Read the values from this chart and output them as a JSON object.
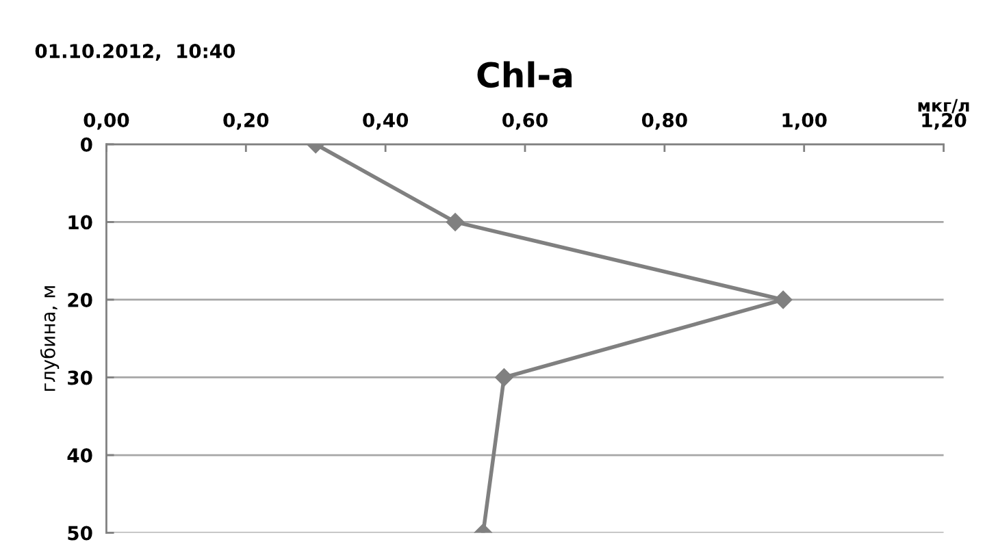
{
  "chart_data": {
    "type": "line",
    "title": "Chl-a",
    "xlabel": "мкг/л",
    "ylabel": "глубина, м",
    "annotations": [
      "01.10.2012,  10:40"
    ],
    "x": [
      0.3,
      0.5,
      0.97,
      0.57,
      0.54
    ],
    "series": [
      {
        "color": "#808080",
        "values": [
          0,
          10,
          20,
          30,
          50
        ]
      }
    ],
    "xlim": [
      0,
      1.2
    ],
    "xticks": [
      {
        "value": 0,
        "label": "0,00"
      },
      {
        "value": 0.2,
        "label": "0,20"
      },
      {
        "value": 0.4,
        "label": "0,40"
      },
      {
        "value": 0.6,
        "label": "0,60"
      },
      {
        "value": 0.8,
        "label": "0,80"
      },
      {
        "value": 1.0,
        "label": "1,00"
      },
      {
        "value": 1.2,
        "label": "1,20"
      }
    ],
    "ylim": [
      50,
      0
    ],
    "yticks": [
      0,
      10,
      20,
      30,
      40,
      50
    ],
    "grid": "y",
    "marker": "diamond",
    "line_style": "solid"
  }
}
